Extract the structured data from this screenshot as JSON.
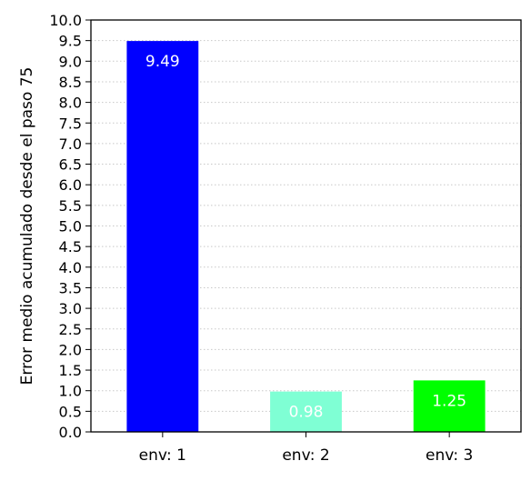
{
  "chart_data": {
    "type": "bar",
    "categories": [
      "env: 1",
      "env: 2",
      "env: 3"
    ],
    "values": [
      9.49,
      0.98,
      1.25
    ],
    "value_labels": [
      "9.49",
      "0.98",
      "1.25"
    ],
    "bar_colors": [
      "#0000ff",
      "#7fffd4",
      "#00ff00"
    ],
    "title": "",
    "xlabel": "",
    "ylabel": "Error medio acumulado desde el paso 75",
    "ylim": [
      0,
      10
    ],
    "yticks": [
      "0.0",
      "0.5",
      "1.0",
      "1.5",
      "2.0",
      "2.5",
      "3.0",
      "3.5",
      "4.0",
      "4.5",
      "5.0",
      "5.5",
      "6.0",
      "6.5",
      "7.0",
      "7.5",
      "8.0",
      "8.5",
      "9.0",
      "9.5",
      "10.0"
    ],
    "grid": "horizontal dotted",
    "legend": "none"
  }
}
